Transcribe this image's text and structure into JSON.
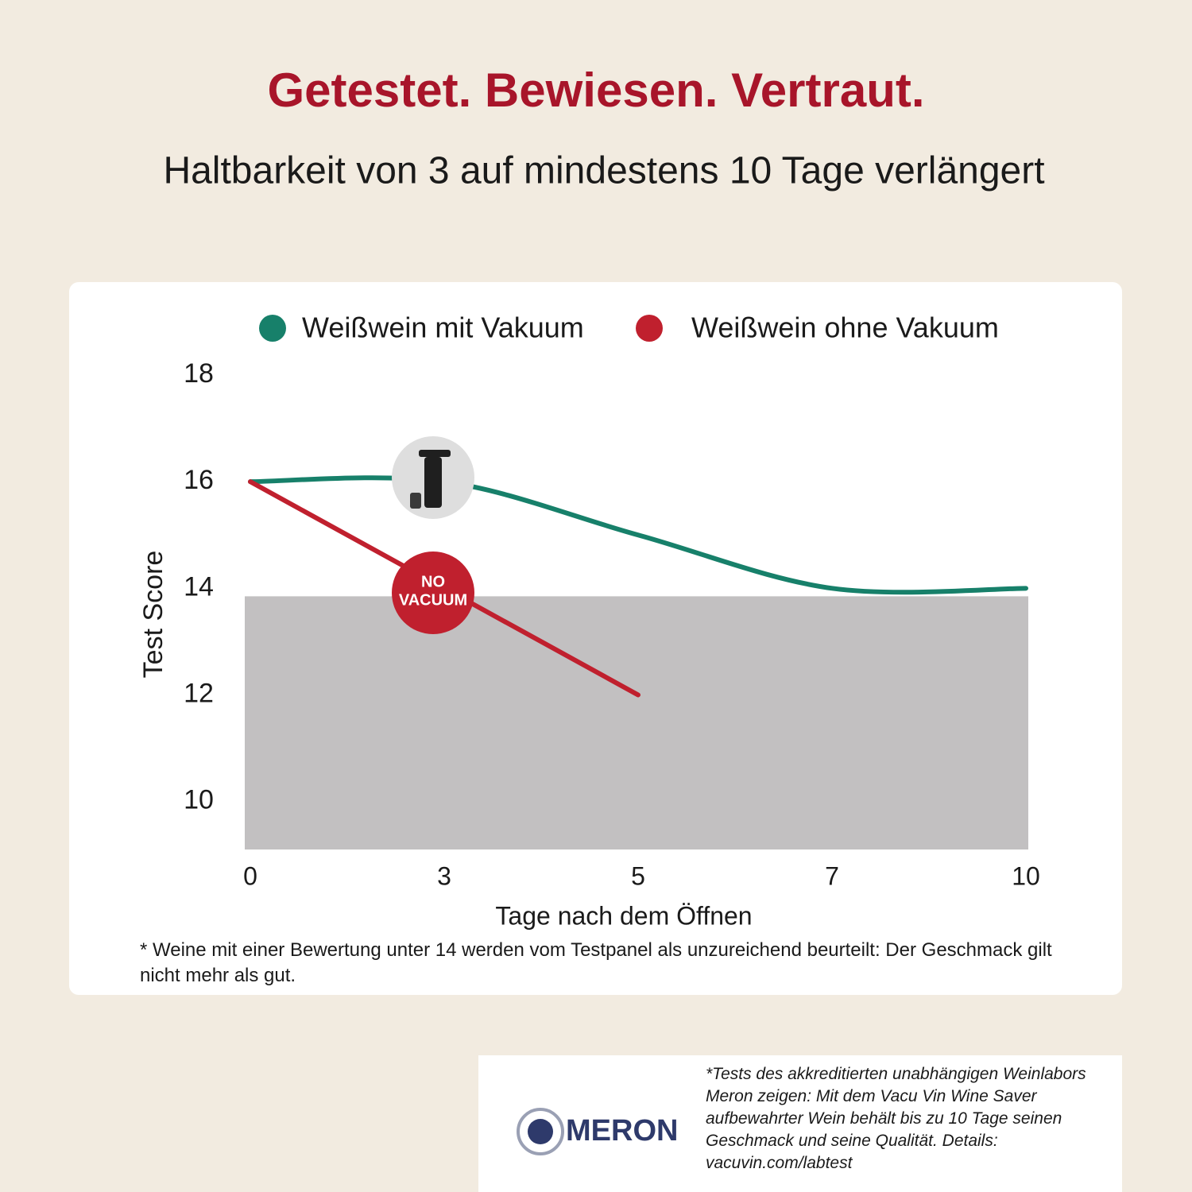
{
  "header": {
    "title": "Getestet. Bewiesen. Vertraut.",
    "subtitle": "Haltbarkeit von 3 auf mindestens 10 Tage verlängert"
  },
  "chart_data": {
    "type": "line",
    "categories": [
      "0",
      "3",
      "5",
      "7",
      "10"
    ],
    "x_label": "Tage nach dem Öffnen",
    "y_label": "Test Score",
    "series": [
      {
        "name": "Weißwein mit Vakuum",
        "color": "#17806a",
        "values": [
          16,
          16,
          15,
          14,
          14
        ],
        "smooth": true
      },
      {
        "name": "Weißwein ohne Vakuum",
        "color": "#c0202e",
        "values": [
          16,
          14,
          12,
          null,
          null
        ],
        "smooth": false
      }
    ],
    "ylim": [
      9.1,
      18
    ],
    "yticks": [
      10,
      12,
      14,
      16,
      18
    ],
    "shaded_band": {
      "from": 9.1,
      "to": 13.85,
      "color": "#c2c0c1"
    },
    "badge_lines": [
      "NO",
      "VACUUM"
    ],
    "footnote": "* Weine mit einer Bewertung unter 14 werden vom Testpanel als unzureichend beurteilt: Der Geschmack gilt nicht mehr als gut."
  },
  "source": {
    "logo": "MERON",
    "text": "*Tests des akkreditierten unabhängigen Weinlabors Meron zeigen: Mit dem Vacu Vin Wine Saver aufbewahrter Wein behält bis zu 10 Tage seinen Geschmack und seine Qualität. Details: vacuvin.com/labtest"
  }
}
